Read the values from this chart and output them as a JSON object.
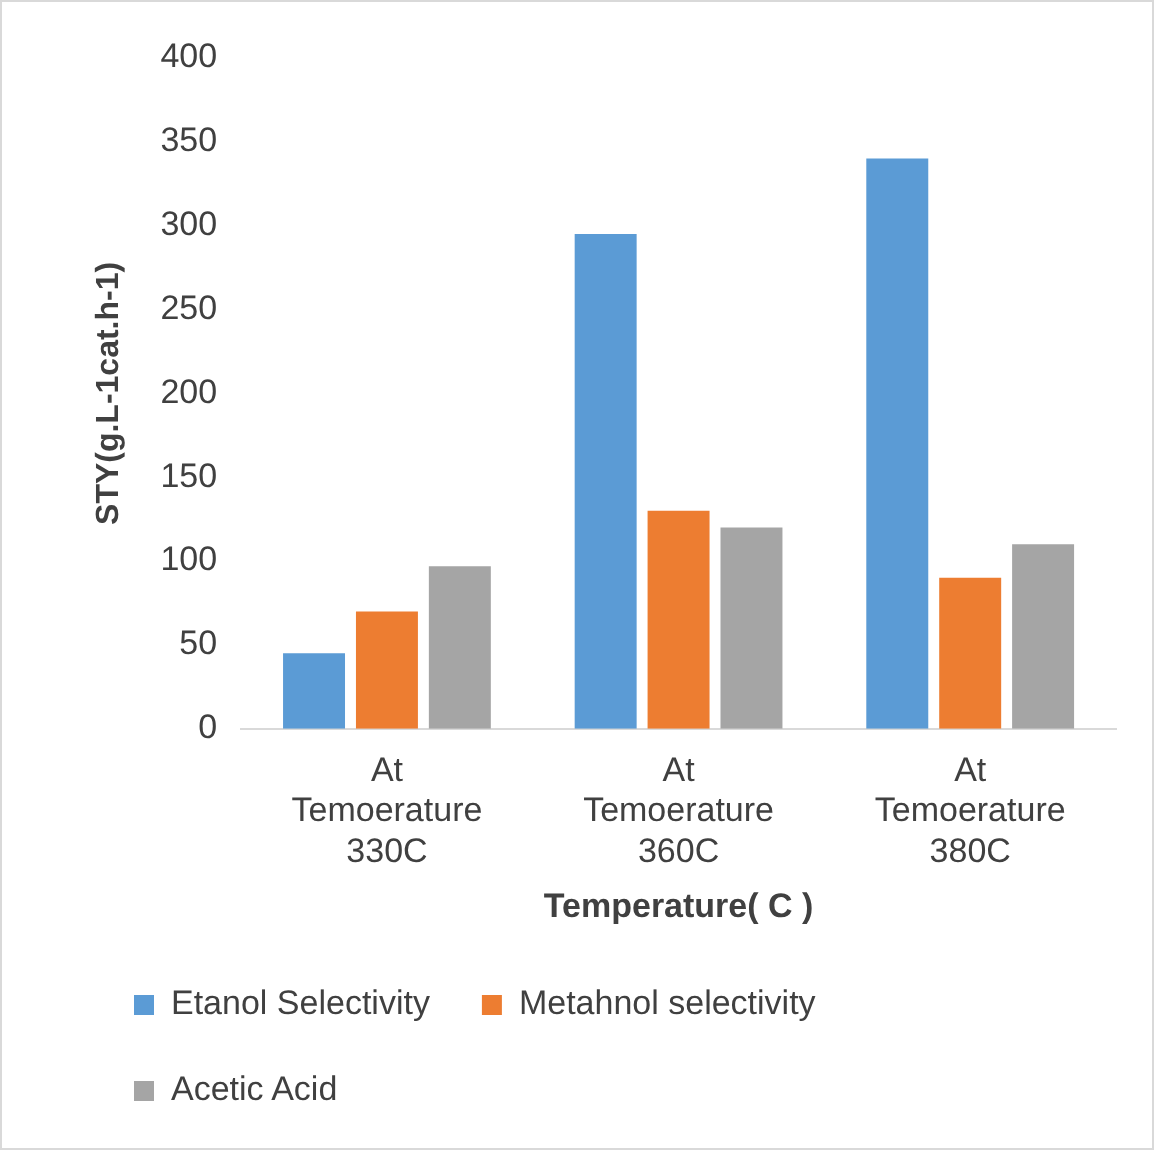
{
  "chart_data": {
    "type": "bar",
    "xlabel": "Temperature( C )",
    "ylabel": "STY(g.L-1cat.h-1)",
    "categories": [
      "At Temoerature 330C",
      "At Temoerature 360C",
      "At Temoerature 380C"
    ],
    "series": [
      {
        "name": "Etanol Selectivity",
        "color": "#5b9bd5",
        "values": [
          45,
          295,
          340
        ]
      },
      {
        "name": "Metahnol selectivity",
        "color": "#ed7d31",
        "values": [
          70,
          130,
          90
        ]
      },
      {
        "name": "Acetic Acid",
        "color": "#a5a5a5",
        "values": [
          97,
          120,
          110
        ]
      }
    ],
    "ylim": [
      0,
      400
    ],
    "yticks": [
      0,
      50,
      100,
      150,
      200,
      250,
      300,
      350,
      400
    ],
    "grid": false,
    "legend": "bottom"
  }
}
